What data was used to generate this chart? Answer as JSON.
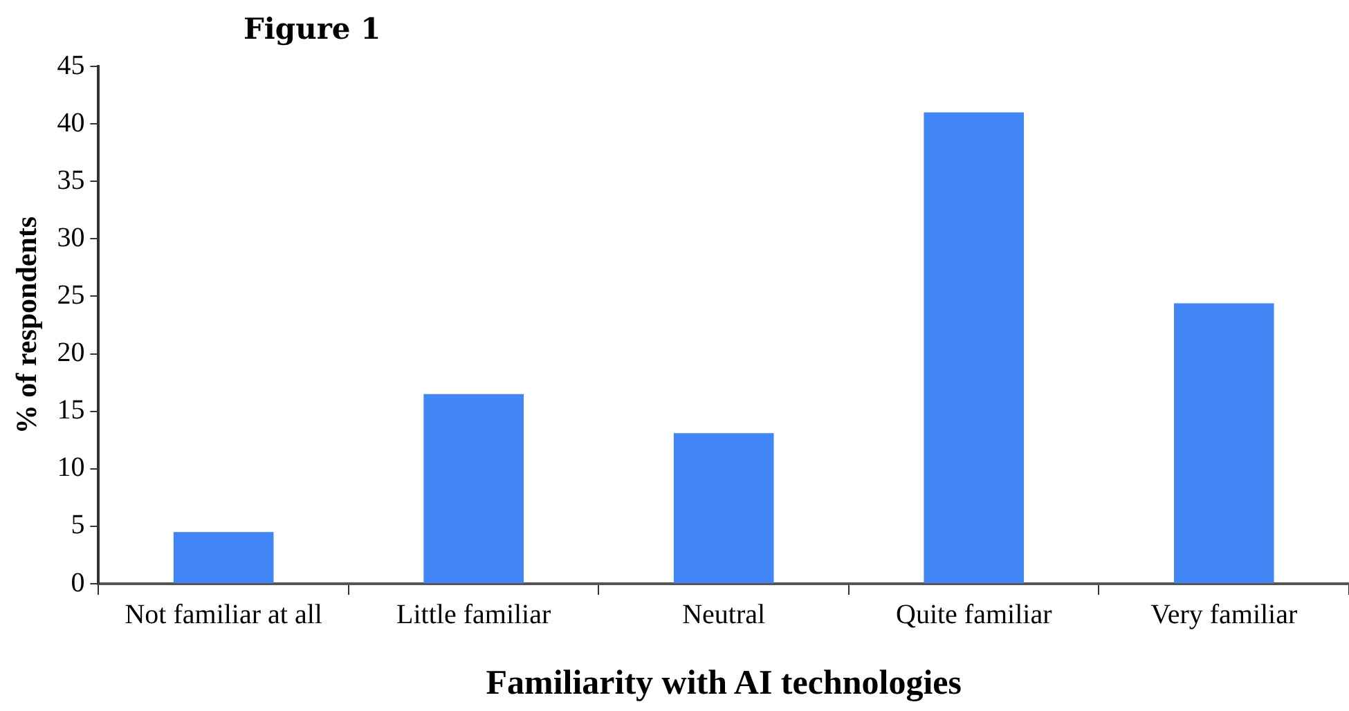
{
  "chart_data": {
    "type": "bar",
    "title": "Figure 1",
    "xlabel": "Familiarity with AI technologies",
    "ylabel": "% of respondents",
    "categories": [
      "Not familiar at all",
      "Little familiar",
      "Neutral",
      "Quite familiar",
      "Very familiar"
    ],
    "values": [
      4.5,
      16.5,
      13.1,
      41.0,
      24.4
    ],
    "color": "#4285f4",
    "ylim": [
      0,
      45
    ],
    "yticks": [
      0,
      5,
      10,
      15,
      20,
      25,
      30,
      35,
      40,
      45
    ],
    "grid": false
  }
}
